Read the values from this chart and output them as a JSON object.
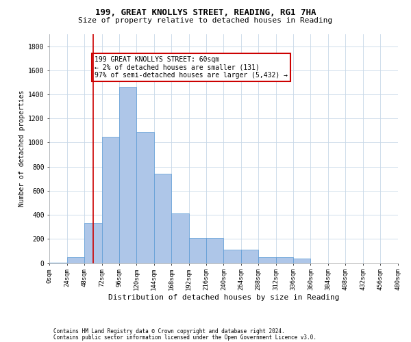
{
  "title": "199, GREAT KNOLLYS STREET, READING, RG1 7HA",
  "subtitle": "Size of property relative to detached houses in Reading",
  "xlabel": "Distribution of detached houses by size in Reading",
  "ylabel": "Number of detached properties",
  "footnote1": "Contains HM Land Registry data © Crown copyright and database right 2024.",
  "footnote2": "Contains public sector information licensed under the Open Government Licence v3.0.",
  "bar_color": "#aec6e8",
  "bar_edge_color": "#5b9bd5",
  "grid_color": "#c8d8e8",
  "annotation_box_color": "#cc0000",
  "vline_color": "#cc0000",
  "bin_edges": [
    0,
    24,
    48,
    72,
    96,
    120,
    144,
    168,
    192,
    216,
    240,
    264,
    288,
    312,
    336,
    360,
    384,
    408,
    432,
    456,
    480
  ],
  "bar_heights": [
    5,
    50,
    335,
    1050,
    1460,
    1090,
    740,
    410,
    210,
    210,
    110,
    110,
    50,
    50,
    40,
    0,
    0,
    0,
    0,
    0
  ],
  "property_size": 60,
  "annotation_line1": "199 GREAT KNOLLYS STREET: 60sqm",
  "annotation_line2": "← 2% of detached houses are smaller (131)",
  "annotation_line3": "97% of semi-detached houses are larger (5,432) →",
  "ylim": [
    0,
    1900
  ],
  "yticks": [
    0,
    200,
    400,
    600,
    800,
    1000,
    1200,
    1400,
    1600,
    1800
  ],
  "xtick_labels": [
    "0sqm",
    "24sqm",
    "48sqm",
    "72sqm",
    "96sqm",
    "120sqm",
    "144sqm",
    "168sqm",
    "192sqm",
    "216sqm",
    "240sqm",
    "264sqm",
    "288sqm",
    "312sqm",
    "336sqm",
    "360sqm",
    "384sqm",
    "408sqm",
    "432sqm",
    "456sqm",
    "480sqm"
  ],
  "background_color": "#ffffff",
  "title_fontsize": 9,
  "subtitle_fontsize": 8,
  "xlabel_fontsize": 8,
  "ylabel_fontsize": 7,
  "ytick_fontsize": 7,
  "xtick_fontsize": 6.5,
  "footnote_fontsize": 5.5,
  "annot_fontsize": 7
}
